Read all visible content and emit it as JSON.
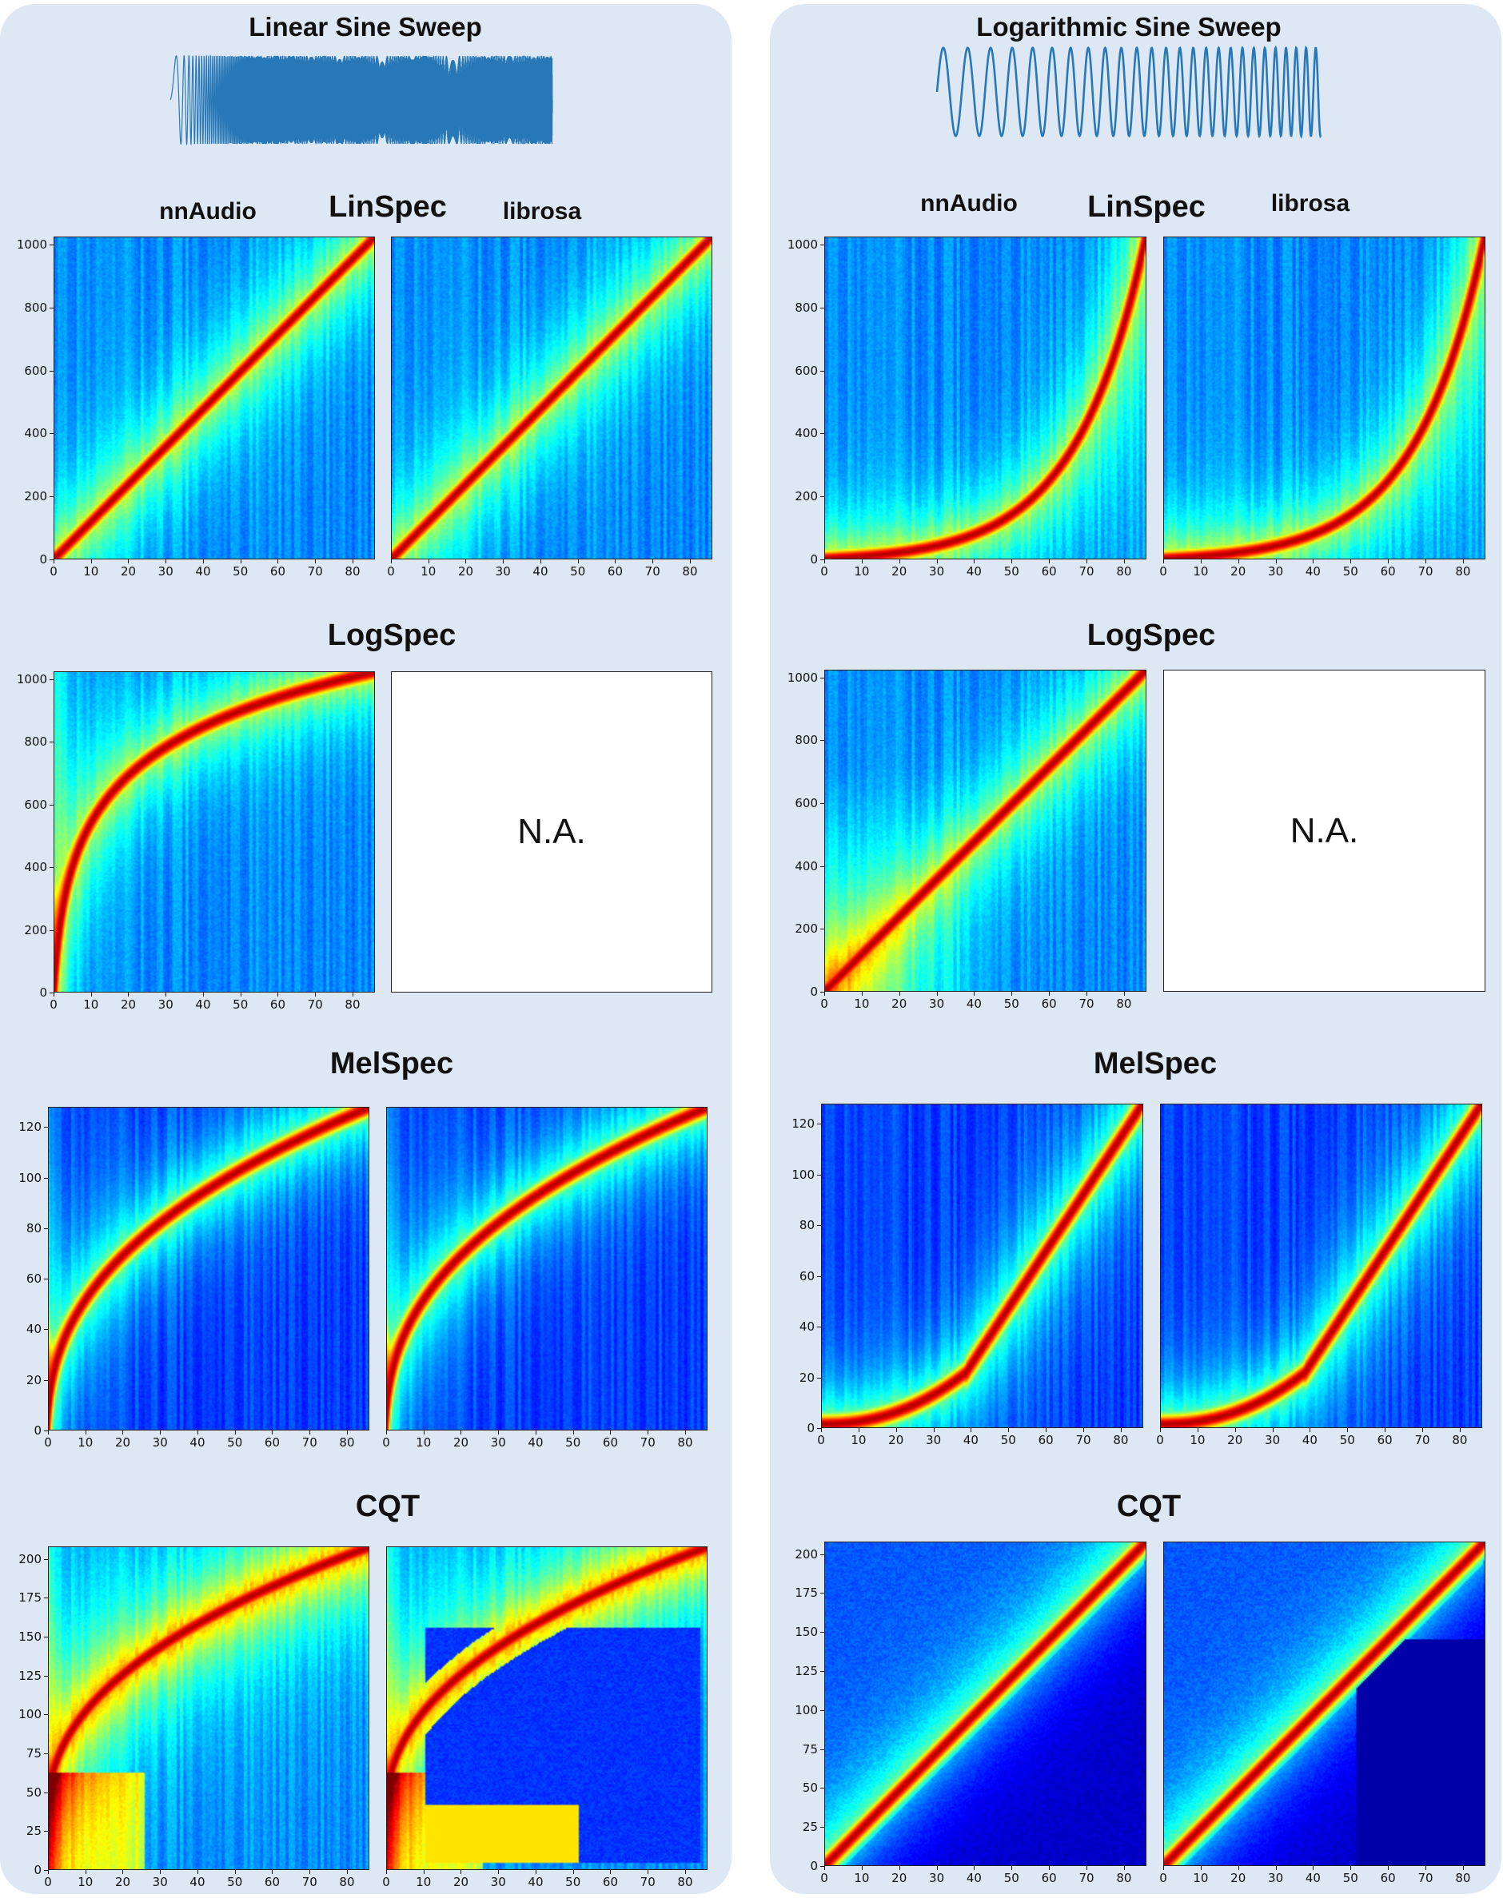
{
  "columns": [
    {
      "title": "Linear Sine Sweep",
      "sweep": "linear",
      "sections": [
        {
          "name": "LinSpec",
          "labels": [
            "nnAudio",
            "librosa"
          ],
          "na_right": false,
          "y_ticks": [
            "0",
            "200",
            "400",
            "600",
            "800",
            "1000"
          ],
          "x_ticks": [
            "0",
            "10",
            "20",
            "30",
            "40",
            "50",
            "60",
            "70",
            "80"
          ]
        },
        {
          "name": "LogSpec",
          "labels": [],
          "na_right": true,
          "na_text": "N.A.",
          "y_ticks": [
            "0",
            "200",
            "400",
            "600",
            "800",
            "1000"
          ],
          "x_ticks": [
            "0",
            "10",
            "20",
            "30",
            "40",
            "50",
            "60",
            "70",
            "80"
          ]
        },
        {
          "name": "MelSpec",
          "labels": [],
          "na_right": false,
          "y_ticks": [
            "0",
            "20",
            "40",
            "60",
            "80",
            "100",
            "120"
          ],
          "x_ticks": [
            "0",
            "10",
            "20",
            "30",
            "40",
            "50",
            "60",
            "70",
            "80"
          ]
        },
        {
          "name": "CQT",
          "labels": [],
          "na_right": false,
          "y_ticks": [
            "0",
            "25",
            "50",
            "75",
            "100",
            "125",
            "150",
            "175",
            "200"
          ],
          "x_ticks": [
            "0",
            "10",
            "20",
            "30",
            "40",
            "50",
            "60",
            "70",
            "80"
          ]
        }
      ]
    },
    {
      "title": "Logarithmic Sine Sweep",
      "sweep": "log",
      "sections": [
        {
          "name": "LinSpec",
          "labels": [
            "nnAudio",
            "librosa"
          ],
          "na_right": false,
          "y_ticks": [
            "0",
            "200",
            "400",
            "600",
            "800",
            "1000"
          ],
          "x_ticks": [
            "0",
            "10",
            "20",
            "30",
            "40",
            "50",
            "60",
            "70",
            "80"
          ]
        },
        {
          "name": "LogSpec",
          "labels": [],
          "na_right": true,
          "na_text": "N.A.",
          "y_ticks": [
            "0",
            "200",
            "400",
            "600",
            "800",
            "1000"
          ],
          "x_ticks": [
            "0",
            "10",
            "20",
            "30",
            "40",
            "50",
            "60",
            "70",
            "80"
          ]
        },
        {
          "name": "MelSpec",
          "labels": [],
          "na_right": false,
          "y_ticks": [
            "0",
            "20",
            "40",
            "60",
            "80",
            "100",
            "120"
          ],
          "x_ticks": [
            "0",
            "10",
            "20",
            "30",
            "40",
            "50",
            "60",
            "70",
            "80"
          ]
        },
        {
          "name": "CQT",
          "labels": [],
          "na_right": false,
          "y_ticks": [
            "0",
            "25",
            "50",
            "75",
            "100",
            "125",
            "150",
            "175",
            "200"
          ],
          "x_ticks": [
            "0",
            "10",
            "20",
            "30",
            "40",
            "50",
            "60",
            "70",
            "80"
          ]
        }
      ]
    }
  ],
  "chart_data": [
    {
      "type": "heatmap",
      "column": "Linear Sine Sweep",
      "section": "LinSpec",
      "panels": [
        "nnAudio",
        "librosa"
      ],
      "xlim": [
        0,
        86
      ],
      "ylim": [
        0,
        1025
      ],
      "ridge": "linear from (0,0) to (86,1025)"
    },
    {
      "type": "heatmap",
      "column": "Linear Sine Sweep",
      "section": "LogSpec",
      "panels": [
        "nnAudio"
      ],
      "xlim": [
        0,
        86
      ],
      "ylim": [
        0,
        1025
      ]
    },
    {
      "type": "heatmap",
      "column": "Linear Sine Sweep",
      "section": "MelSpec",
      "panels": [
        "nnAudio",
        "librosa"
      ],
      "xlim": [
        0,
        86
      ],
      "ylim": [
        0,
        128
      ]
    },
    {
      "type": "heatmap",
      "column": "Linear Sine Sweep",
      "section": "CQT",
      "panels": [
        "nnAudio",
        "librosa"
      ],
      "xlim": [
        0,
        86
      ],
      "ylim": [
        0,
        208
      ]
    },
    {
      "type": "heatmap",
      "column": "Logarithmic Sine Sweep",
      "section": "LinSpec",
      "panels": [
        "nnAudio",
        "librosa"
      ],
      "xlim": [
        0,
        86
      ],
      "ylim": [
        0,
        1025
      ]
    },
    {
      "type": "heatmap",
      "column": "Logarithmic Sine Sweep",
      "section": "LogSpec",
      "panels": [
        "nnAudio"
      ],
      "xlim": [
        0,
        86
      ],
      "ylim": [
        0,
        1025
      ]
    },
    {
      "type": "heatmap",
      "column": "Logarithmic Sine Sweep",
      "section": "MelSpec",
      "panels": [
        "nnAudio",
        "librosa"
      ],
      "xlim": [
        0,
        86
      ],
      "ylim": [
        0,
        128
      ]
    },
    {
      "type": "heatmap",
      "column": "Logarithmic Sine Sweep",
      "section": "CQT",
      "panels": [
        "nnAudio",
        "librosa"
      ],
      "xlim": [
        0,
        86
      ],
      "ylim": [
        0,
        208
      ]
    }
  ],
  "colors": {
    "panel_bg": "#dee8f5",
    "waveform": "#2878b8"
  }
}
